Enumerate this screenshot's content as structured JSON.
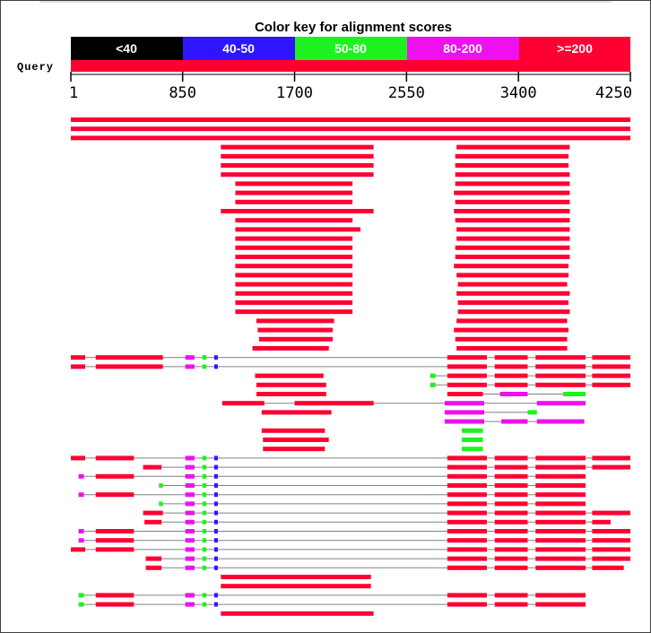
{
  "color_key": {
    "title": "Color key for alignment scores",
    "bins": [
      {
        "label": "<40",
        "color": "#000000"
      },
      {
        "label": "40-50",
        "color": "#2f15ff"
      },
      {
        "label": "50-80",
        "color": "#1ef21e"
      },
      {
        "label": "80-200",
        "color": "#ee10ee"
      },
      {
        "label": ">=200",
        "color": "#ff0033"
      }
    ]
  },
  "query": {
    "label": "Query",
    "length": 4250,
    "ticks": [
      "1",
      "850",
      "1700",
      "2550",
      "3400",
      "4250"
    ],
    "tick_values": [
      1,
      850,
      1700,
      2550,
      3400,
      4250
    ]
  },
  "colors": {
    "high": "#ff0033",
    "mid": "#ee10ee",
    "low": "#1ef21e",
    "vlow": "#2f15ff",
    "connector": "#808080"
  },
  "hits": [
    {
      "segs": [
        [
          1,
          4250,
          "r"
        ]
      ]
    },
    {
      "segs": [
        [
          1,
          4250,
          "r"
        ]
      ]
    },
    {
      "segs": [
        [
          1,
          4250,
          "r"
        ]
      ]
    },
    {
      "segs": [
        [
          1140,
          2300,
          "r"
        ],
        [
          2930,
          3790,
          "r"
        ]
      ]
    },
    {
      "segs": [
        [
          1140,
          2300,
          "r"
        ],
        [
          2920,
          3780,
          "r"
        ]
      ]
    },
    {
      "segs": [
        [
          1140,
          2300,
          "r"
        ],
        [
          2920,
          3780,
          "r"
        ]
      ]
    },
    {
      "segs": [
        [
          1140,
          2300,
          "r"
        ],
        [
          2920,
          3790,
          "r"
        ]
      ]
    },
    {
      "segs": [
        [
          1250,
          2140,
          "r"
        ],
        [
          2920,
          3790,
          "r"
        ]
      ]
    },
    {
      "segs": [
        [
          1250,
          2140,
          "r"
        ],
        [
          2910,
          3790,
          "r"
        ]
      ]
    },
    {
      "segs": [
        [
          1250,
          2140,
          "r"
        ],
        [
          2920,
          3790,
          "r"
        ]
      ]
    },
    {
      "segs": [
        [
          1140,
          2300,
          "r"
        ],
        [
          2910,
          3790,
          "r"
        ]
      ]
    },
    {
      "segs": [
        [
          1250,
          2140,
          "r"
        ],
        [
          2920,
          3790,
          "r"
        ]
      ]
    },
    {
      "segs": [
        [
          1250,
          2200,
          "r"
        ],
        [
          2930,
          3790,
          "r"
        ]
      ]
    },
    {
      "segs": [
        [
          1250,
          2140,
          "r"
        ],
        [
          2930,
          3790,
          "r"
        ]
      ]
    },
    {
      "segs": [
        [
          1250,
          2140,
          "r"
        ],
        [
          2920,
          3790,
          "r"
        ]
      ]
    },
    {
      "segs": [
        [
          1250,
          2140,
          "r"
        ],
        [
          2920,
          3790,
          "r"
        ]
      ]
    },
    {
      "segs": [
        [
          1250,
          2140,
          "r"
        ],
        [
          2910,
          3780,
          "r"
        ]
      ]
    },
    {
      "segs": [
        [
          1250,
          2140,
          "r"
        ],
        [
          2930,
          3780,
          "r"
        ]
      ]
    },
    {
      "segs": [
        [
          1250,
          2140,
          "r"
        ],
        [
          2940,
          3770,
          "r"
        ]
      ]
    },
    {
      "segs": [
        [
          1250,
          2140,
          "r"
        ],
        [
          2930,
          3790,
          "r"
        ]
      ]
    },
    {
      "segs": [
        [
          1250,
          2140,
          "r"
        ],
        [
          2940,
          3780,
          "r"
        ]
      ]
    },
    {
      "segs": [
        [
          1250,
          2140,
          "r"
        ],
        [
          2940,
          3790,
          "r"
        ]
      ]
    },
    {
      "segs": [
        [
          1410,
          2000,
          "r"
        ],
        [
          2930,
          3770,
          "r"
        ]
      ]
    },
    {
      "segs": [
        [
          1420,
          1990,
          "r"
        ],
        [
          2910,
          3780,
          "r"
        ]
      ]
    },
    {
      "segs": [
        [
          1430,
          1990,
          "r"
        ],
        [
          2920,
          3770,
          "r"
        ]
      ]
    },
    {
      "segs": [
        [
          1380,
          1960,
          "r"
        ],
        [
          2930,
          3770,
          "r"
        ]
      ]
    },
    {
      "line": [
        1,
        4250
      ],
      "segs": [
        [
          1,
          110,
          "r"
        ],
        [
          190,
          700,
          "r"
        ],
        [
          870,
          940,
          "m"
        ],
        [
          1000,
          1030,
          "g"
        ],
        [
          1090,
          1110,
          "b"
        ],
        [
          2860,
          3160,
          "r"
        ],
        [
          3220,
          3470,
          "r"
        ],
        [
          3530,
          3910,
          "r"
        ],
        [
          3960,
          4250,
          "r"
        ]
      ]
    },
    {
      "line": [
        1,
        4250
      ],
      "segs": [
        [
          1,
          110,
          "r"
        ],
        [
          190,
          700,
          "r"
        ],
        [
          870,
          940,
          "m"
        ],
        [
          1000,
          1030,
          "g"
        ],
        [
          1090,
          1110,
          "b"
        ],
        [
          2860,
          3160,
          "r"
        ],
        [
          3220,
          3470,
          "r"
        ],
        [
          3530,
          3910,
          "r"
        ],
        [
          3960,
          4250,
          "r"
        ]
      ]
    },
    {
      "segs": [
        [
          1400,
          1920,
          "r"
        ],
        [
          2860,
          3160,
          "r"
        ],
        [
          3220,
          3470,
          "r"
        ],
        [
          3530,
          3910,
          "r"
        ],
        [
          3960,
          4250,
          "r"
        ]
      ],
      "line": [
        2730,
        4250
      ],
      "extra": [
        [
          2730,
          2770,
          "g"
        ]
      ]
    },
    {
      "segs": [
        [
          1410,
          1940,
          "r"
        ],
        [
          2860,
          3160,
          "r"
        ],
        [
          3220,
          3470,
          "r"
        ],
        [
          3530,
          3910,
          "r"
        ],
        [
          3960,
          4250,
          "r"
        ]
      ],
      "line": [
        2730,
        4250
      ],
      "extra": [
        [
          2730,
          2770,
          "g"
        ]
      ]
    },
    {
      "segs": [
        [
          1410,
          1940,
          "r"
        ],
        [
          2860,
          3130,
          "r"
        ],
        [
          3260,
          3470,
          "m"
        ],
        [
          3740,
          3910,
          "g"
        ]
      ],
      "line": [
        2860,
        3910
      ]
    },
    {
      "segs": [
        [
          1150,
          1470,
          "r"
        ],
        [
          1700,
          2300,
          "r"
        ],
        [
          2840,
          3140,
          "m"
        ],
        [
          3540,
          3910,
          "m"
        ]
      ],
      "line": [
        1150,
        3910
      ]
    },
    {
      "segs": [
        [
          1450,
          1980,
          "r"
        ],
        [
          2840,
          3140,
          "m"
        ],
        [
          3470,
          3540,
          "g"
        ]
      ],
      "line": [
        2840,
        3540
      ]
    },
    {
      "segs": [
        [
          2840,
          3140,
          "m"
        ],
        [
          3270,
          3470,
          "m"
        ],
        [
          3540,
          3900,
          "m"
        ]
      ],
      "line": [
        2840,
        3900
      ]
    },
    {
      "segs": [
        [
          1450,
          1930,
          "r"
        ],
        [
          2970,
          3130,
          "g"
        ]
      ]
    },
    {
      "segs": [
        [
          1460,
          1960,
          "r"
        ],
        [
          2970,
          3130,
          "g"
        ]
      ]
    },
    {
      "segs": [
        [
          1460,
          1930,
          "r"
        ],
        [
          2970,
          3130,
          "g"
        ]
      ]
    },
    {
      "line": [
        1,
        4250
      ],
      "segs": [
        [
          1,
          110,
          "r"
        ],
        [
          190,
          480,
          "r"
        ],
        [
          870,
          940,
          "m"
        ],
        [
          1000,
          1030,
          "g"
        ],
        [
          1090,
          1110,
          "b"
        ],
        [
          2860,
          3160,
          "r"
        ],
        [
          3220,
          3470,
          "r"
        ],
        [
          3530,
          3910,
          "r"
        ],
        [
          3960,
          4250,
          "r"
        ]
      ]
    },
    {
      "line": [
        550,
        4250
      ],
      "segs": [
        [
          550,
          690,
          "r"
        ],
        [
          870,
          940,
          "m"
        ],
        [
          1000,
          1030,
          "g"
        ],
        [
          1090,
          1110,
          "b"
        ],
        [
          2860,
          3160,
          "r"
        ],
        [
          3220,
          3470,
          "r"
        ],
        [
          3530,
          3910,
          "r"
        ],
        [
          3960,
          4250,
          "r"
        ]
      ]
    },
    {
      "line": [
        60,
        3910
      ],
      "segs": [
        [
          60,
          100,
          "m"
        ],
        [
          190,
          480,
          "r"
        ],
        [
          870,
          940,
          "m"
        ],
        [
          1000,
          1030,
          "g"
        ],
        [
          1090,
          1110,
          "b"
        ],
        [
          2860,
          3160,
          "r"
        ],
        [
          3220,
          3470,
          "r"
        ],
        [
          3530,
          3910,
          "r"
        ]
      ]
    },
    {
      "line": [
        670,
        3910
      ],
      "segs": [
        [
          670,
          700,
          "g"
        ],
        [
          870,
          940,
          "m"
        ],
        [
          1000,
          1030,
          "g"
        ],
        [
          1090,
          1110,
          "b"
        ],
        [
          2860,
          3160,
          "r"
        ],
        [
          3220,
          3470,
          "r"
        ],
        [
          3530,
          3910,
          "r"
        ]
      ]
    },
    {
      "line": [
        60,
        3910
      ],
      "segs": [
        [
          60,
          100,
          "m"
        ],
        [
          190,
          480,
          "r"
        ],
        [
          870,
          940,
          "m"
        ],
        [
          1000,
          1030,
          "g"
        ],
        [
          1090,
          1110,
          "b"
        ],
        [
          2860,
          3160,
          "r"
        ],
        [
          3220,
          3470,
          "r"
        ],
        [
          3530,
          3910,
          "r"
        ]
      ]
    },
    {
      "line": [
        670,
        3910
      ],
      "segs": [
        [
          670,
          700,
          "g"
        ],
        [
          870,
          940,
          "m"
        ],
        [
          1000,
          1030,
          "g"
        ],
        [
          1090,
          1110,
          "b"
        ],
        [
          2860,
          3160,
          "r"
        ],
        [
          3220,
          3470,
          "r"
        ],
        [
          3530,
          3910,
          "r"
        ]
      ]
    },
    {
      "line": [
        550,
        4250
      ],
      "segs": [
        [
          550,
          700,
          "r"
        ],
        [
          870,
          940,
          "m"
        ],
        [
          1000,
          1030,
          "g"
        ],
        [
          1090,
          1110,
          "b"
        ],
        [
          2860,
          3160,
          "r"
        ],
        [
          3220,
          3470,
          "r"
        ],
        [
          3530,
          3910,
          "r"
        ],
        [
          3960,
          4250,
          "r"
        ]
      ]
    },
    {
      "line": [
        560,
        4100
      ],
      "segs": [
        [
          560,
          690,
          "r"
        ],
        [
          870,
          940,
          "m"
        ],
        [
          1000,
          1030,
          "g"
        ],
        [
          1090,
          1110,
          "b"
        ],
        [
          2860,
          3160,
          "r"
        ],
        [
          3220,
          3470,
          "r"
        ],
        [
          3530,
          3910,
          "r"
        ],
        [
          3960,
          4100,
          "r"
        ]
      ]
    },
    {
      "line": [
        60,
        4250
      ],
      "segs": [
        [
          60,
          100,
          "m"
        ],
        [
          190,
          480,
          "r"
        ],
        [
          870,
          940,
          "m"
        ],
        [
          1000,
          1030,
          "g"
        ],
        [
          1090,
          1110,
          "b"
        ],
        [
          2860,
          3160,
          "r"
        ],
        [
          3220,
          3470,
          "r"
        ],
        [
          3530,
          3910,
          "r"
        ],
        [
          3960,
          4250,
          "r"
        ]
      ]
    },
    {
      "line": [
        60,
        4250
      ],
      "segs": [
        [
          60,
          100,
          "m"
        ],
        [
          190,
          480,
          "r"
        ],
        [
          870,
          940,
          "m"
        ],
        [
          1000,
          1030,
          "g"
        ],
        [
          1090,
          1110,
          "b"
        ],
        [
          2860,
          3160,
          "r"
        ],
        [
          3220,
          3470,
          "r"
        ],
        [
          3530,
          3910,
          "r"
        ],
        [
          3960,
          4250,
          "r"
        ]
      ]
    },
    {
      "line": [
        1,
        4250
      ],
      "segs": [
        [
          1,
          110,
          "r"
        ],
        [
          190,
          480,
          "r"
        ],
        [
          870,
          940,
          "m"
        ],
        [
          1000,
          1030,
          "g"
        ],
        [
          1090,
          1110,
          "b"
        ],
        [
          2860,
          3160,
          "r"
        ],
        [
          3220,
          3470,
          "r"
        ],
        [
          3530,
          3910,
          "r"
        ],
        [
          3960,
          4250,
          "r"
        ]
      ]
    },
    {
      "line": [
        570,
        4250
      ],
      "segs": [
        [
          570,
          690,
          "r"
        ],
        [
          870,
          940,
          "m"
        ],
        [
          1000,
          1030,
          "g"
        ],
        [
          1090,
          1110,
          "b"
        ],
        [
          2860,
          3160,
          "r"
        ],
        [
          3220,
          3470,
          "r"
        ],
        [
          3530,
          3910,
          "r"
        ],
        [
          3960,
          4250,
          "r"
        ]
      ]
    },
    {
      "line": [
        570,
        4200
      ],
      "segs": [
        [
          570,
          690,
          "r"
        ],
        [
          870,
          940,
          "m"
        ],
        [
          1000,
          1030,
          "g"
        ],
        [
          1090,
          1110,
          "b"
        ],
        [
          2860,
          3160,
          "r"
        ],
        [
          3220,
          3470,
          "r"
        ],
        [
          3530,
          3910,
          "r"
        ],
        [
          3960,
          4200,
          "r"
        ]
      ]
    },
    {
      "segs": [
        [
          1140,
          2280,
          "r"
        ]
      ]
    },
    {
      "segs": [
        [
          1140,
          2280,
          "r"
        ]
      ]
    },
    {
      "line": [
        60,
        3910
      ],
      "segs": [
        [
          60,
          100,
          "g"
        ],
        [
          190,
          480,
          "r"
        ],
        [
          870,
          940,
          "m"
        ],
        [
          1000,
          1030,
          "g"
        ],
        [
          1090,
          1110,
          "b"
        ],
        [
          2860,
          3160,
          "r"
        ],
        [
          3220,
          3470,
          "r"
        ],
        [
          3530,
          3910,
          "r"
        ]
      ]
    },
    {
      "line": [
        60,
        3910
      ],
      "segs": [
        [
          60,
          100,
          "g"
        ],
        [
          190,
          480,
          "r"
        ],
        [
          870,
          940,
          "m"
        ],
        [
          1000,
          1030,
          "g"
        ],
        [
          1090,
          1110,
          "b"
        ],
        [
          2860,
          3160,
          "r"
        ],
        [
          3220,
          3470,
          "r"
        ],
        [
          3530,
          3910,
          "r"
        ]
      ]
    },
    {
      "segs": [
        [
          1140,
          2300,
          "r"
        ]
      ]
    }
  ]
}
